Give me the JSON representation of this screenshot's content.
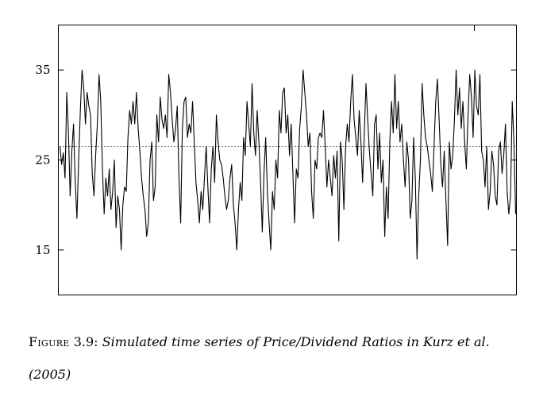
{
  "chart_data": {
    "type": "line",
    "title": "",
    "xlabel": "",
    "ylabel": "",
    "ylim": [
      10,
      40
    ],
    "yticks": [
      15,
      25,
      35
    ],
    "ytick_labels": [
      "15",
      "25",
      "35"
    ],
    "reference_line": {
      "y": 26.5,
      "style": "dotted"
    },
    "series": [
      {
        "values": [
          26.5,
          24.5,
          25.8,
          23.0,
          32.5,
          28.0,
          21.0,
          26.0,
          29.0,
          22.5,
          18.5,
          25.0,
          30.5,
          35.0,
          33.0,
          29.0,
          32.5,
          31.0,
          30.0,
          23.5,
          21.0,
          25.5,
          29.0,
          34.5,
          31.5,
          24.0,
          19.0,
          23.0,
          21.0,
          24.0,
          19.5,
          21.5,
          25.0,
          17.5,
          21.0,
          19.5,
          15.0,
          20.0,
          22.0,
          21.5,
          27.5,
          30.5,
          29.0,
          31.5,
          29.0,
          32.5,
          28.5,
          26.0,
          23.0,
          21.0,
          19.5,
          16.5,
          18.0,
          25.0,
          27.0,
          20.5,
          22.0,
          30.0,
          27.0,
          32.0,
          29.5,
          28.5,
          30.0,
          27.5,
          34.5,
          32.5,
          29.5,
          27.0,
          28.5,
          31.0,
          23.0,
          18.0,
          28.5,
          31.5,
          32.0,
          27.5,
          29.0,
          28.0,
          31.5,
          27.0,
          22.5,
          20.5,
          18.0,
          21.5,
          19.5,
          23.0,
          26.5,
          22.0,
          18.0,
          24.0,
          26.5,
          22.5,
          30.0,
          27.0,
          25.0,
          24.5,
          23.0,
          21.0,
          19.5,
          20.5,
          23.0,
          24.5,
          20.0,
          18.0,
          15.0,
          19.5,
          22.5,
          20.5,
          27.5,
          25.5,
          31.5,
          29.0,
          26.5,
          33.5,
          28.0,
          25.5,
          30.5,
          27.0,
          22.5,
          17.0,
          23.5,
          27.5,
          21.5,
          18.0,
          15.0,
          21.5,
          19.5,
          25.0,
          23.0,
          30.5,
          28.0,
          32.5,
          33.0,
          28.0,
          30.0,
          25.5,
          29.0,
          23.5,
          18.0,
          24.0,
          23.0,
          28.5,
          31.0,
          35.0,
          32.5,
          30.0,
          26.5,
          28.0,
          21.5,
          18.5,
          25.0,
          24.0,
          27.5,
          28.0,
          27.5,
          30.5,
          26.5,
          22.0,
          25.0,
          23.0,
          21.0,
          25.5,
          23.0,
          26.0,
          16.0,
          27.0,
          25.0,
          19.5,
          26.5,
          29.0,
          27.0,
          31.5,
          34.5,
          29.5,
          27.5,
          25.5,
          30.5,
          27.0,
          22.5,
          28.0,
          33.5,
          29.5,
          26.0,
          23.5,
          21.0,
          29.0,
          30.0,
          24.0,
          28.0,
          22.5,
          25.0,
          16.5,
          22.0,
          18.5,
          27.0,
          31.5,
          28.0,
          34.5,
          28.5,
          31.5,
          27.0,
          29.0,
          25.0,
          22.0,
          27.0,
          25.0,
          18.5,
          20.5,
          27.5,
          23.0,
          14.0,
          21.0,
          25.0,
          33.5,
          30.0,
          27.5,
          26.5,
          25.0,
          23.5,
          21.5,
          26.5,
          31.5,
          34.0,
          29.5,
          24.5,
          22.0,
          26.0,
          20.5,
          15.5,
          27.0,
          24.0,
          25.5,
          29.5,
          35.0,
          30.0,
          33.0,
          28.5,
          31.5,
          27.0,
          24.0,
          30.0,
          34.5,
          32.0,
          27.5,
          35.0,
          31.0,
          30.0,
          34.5,
          26.0,
          25.0,
          22.0,
          26.5,
          19.5,
          21.5,
          26.0,
          24.5,
          21.0,
          20.0,
          26.0,
          27.0,
          23.5,
          25.5,
          29.0,
          21.5,
          19.0,
          21.0,
          31.5,
          27.0,
          19.0
        ]
      }
    ],
    "grid": false,
    "legend": "none"
  },
  "caption": {
    "label": "Figure",
    "number": "3.9:",
    "text": "Simulated time series of Price/Dividend Ratios in Kurz et al.",
    "year": "(2005)"
  }
}
